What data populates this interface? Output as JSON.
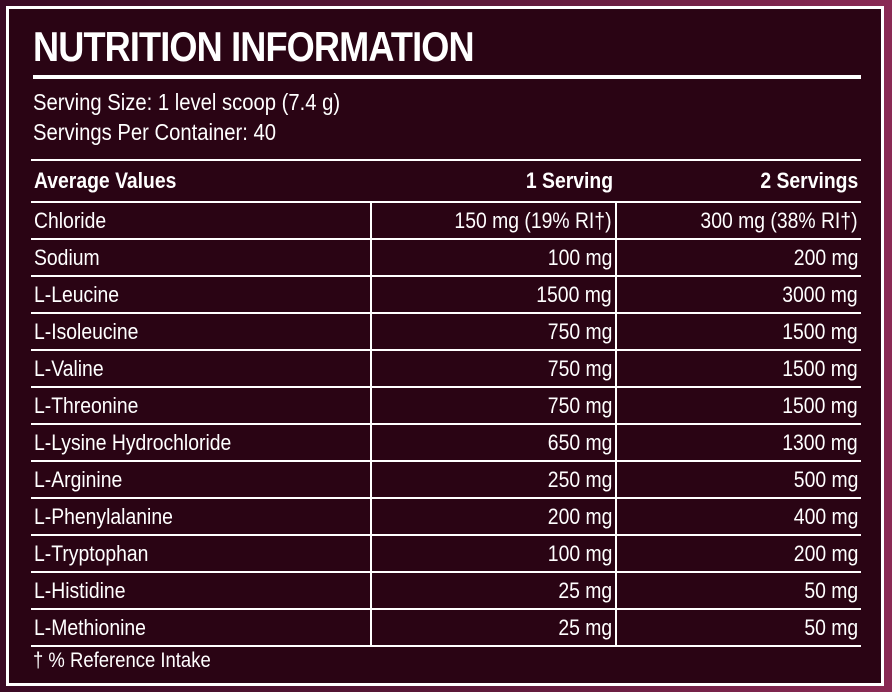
{
  "title": "NUTRITION INFORMATION",
  "serving_size": "Serving Size: 1 level scoop (7.4 g)",
  "servings_per_container": "Servings Per Container: 40",
  "table": {
    "headers": [
      "Average Values",
      "1 Serving",
      "2 Servings"
    ],
    "rows": [
      [
        "Chloride",
        "150 mg (19% RI†)",
        "300 mg (38% RI†)"
      ],
      [
        "Sodium",
        "100 mg",
        "200 mg"
      ],
      [
        "L-Leucine",
        "1500 mg",
        "3000 mg"
      ],
      [
        "L-Isoleucine",
        "750 mg",
        "1500 mg"
      ],
      [
        "L-Valine",
        "750 mg",
        "1500 mg"
      ],
      [
        "L-Threonine",
        "750 mg",
        "1500 mg"
      ],
      [
        "L-Lysine Hydrochloride",
        "650 mg",
        "1300 mg"
      ],
      [
        "L-Arginine",
        "250 mg",
        "500 mg"
      ],
      [
        "L-Phenylalanine",
        "200 mg",
        "400 mg"
      ],
      [
        "L-Tryptophan",
        "100 mg",
        "200 mg"
      ],
      [
        "L-Histidine",
        "25 mg",
        "50 mg"
      ],
      [
        "L-Methionine",
        "25 mg",
        "50 mg"
      ]
    ]
  },
  "footnote": "† % Reference Intake",
  "colors": {
    "panel": "#2a0414",
    "border": "#ffffff"
  }
}
